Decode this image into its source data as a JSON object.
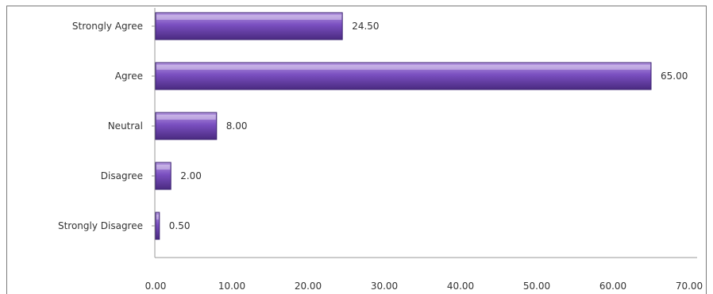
{
  "chart_data": {
    "type": "bar",
    "orientation": "horizontal",
    "categories": [
      "Strongly Agree",
      "Agree",
      "Neutral",
      "Disagree",
      "Strongly Disagree"
    ],
    "values": [
      24.5,
      65.0,
      8.0,
      2.0,
      0.5
    ],
    "value_labels": [
      "24.50",
      "65.00",
      "8.00",
      "2.00",
      "0.50"
    ],
    "xlim": [
      0,
      70
    ],
    "x_ticks": [
      0,
      10,
      20,
      30,
      40,
      50,
      60,
      70
    ],
    "x_tick_labels": [
      "0.00",
      "10.00",
      "20.00",
      "30.00",
      "40.00",
      "50.00",
      "60.00",
      "70.00"
    ],
    "title": "",
    "xlabel": "",
    "ylabel": "",
    "grid": false,
    "legend": "none",
    "colors": {
      "bar_top": "#b79ae0",
      "bar_mid": "#7a4fc0",
      "bar_bottom": "#4a2a80",
      "bar_edge": "#3a2270"
    }
  }
}
